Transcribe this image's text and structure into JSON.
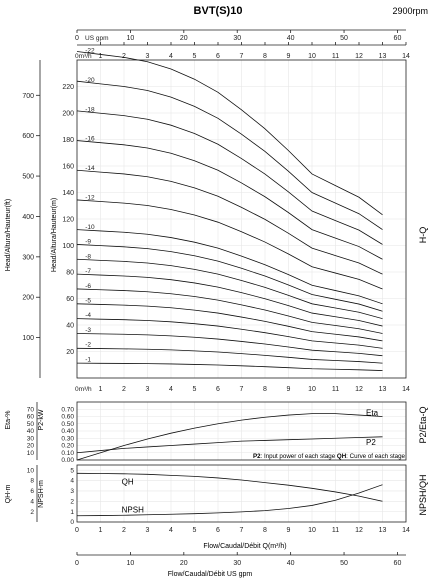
{
  "header": {
    "title": "BVT(S)10",
    "speed": "2900rpm"
  },
  "axes": {
    "top_unit": "US gpm",
    "q_top_label": "0m³/h",
    "q_mid_label": "0m³/h",
    "bottom_unit_label": "Flow/Caudal/Débit  US gpm",
    "flow_label": "Flow/Caudal/Débit Q(m³/h)",
    "head_ft_label": "Head/Altura/Hauteur(ft)",
    "head_m_label": "Head/Altura/Hauteur(m)",
    "eta_label": "Eta-%",
    "p2_label": "P2-kW",
    "qh_label": "QH-m",
    "npsh_axis_label": "NPSH-m",
    "right_hq": "H-Q",
    "right_p2": "P2/Eta-Q",
    "right_npsh": "NPSH/QH"
  },
  "notes": {
    "p2_key": "P2",
    "p2_text": ": Input power of each stage ",
    "qh_key": "QH",
    "qh_text": ": Curve of each stage"
  },
  "chart_data": [
    {
      "type": "line",
      "name": "hq",
      "x_label": "Q(m³/h)",
      "y_label": "Head/Altura/Hauteur(m)",
      "xlim": [
        0,
        14
      ],
      "ylim": [
        0,
        240
      ],
      "x_ticks": [
        "1",
        "2",
        "3",
        "4",
        "5",
        "6",
        "7",
        "8",
        "9",
        "10",
        "11",
        "12",
        "13",
        "14"
      ],
      "y_ticks_m": [
        "20",
        "40",
        "60",
        "80",
        "100",
        "120",
        "140",
        "160",
        "180",
        "200",
        "220"
      ],
      "y_ticks_ft": [
        "100",
        "200",
        "300",
        "400",
        "500",
        "600",
        "700"
      ],
      "us_gpm_ticks": [
        "0",
        "10",
        "20",
        "30",
        "40",
        "50",
        "60"
      ],
      "per_stage_head_x": [
        0,
        1,
        2,
        3,
        4,
        5,
        6,
        7,
        8,
        9,
        10,
        11,
        12,
        13
      ],
      "per_stage_head_y": [
        11.2,
        11.1,
        11.0,
        10.85,
        10.6,
        10.25,
        9.8,
        9.2,
        8.55,
        7.8,
        7.0,
        6.6,
        6.2,
        5.6
      ],
      "stages": [
        "1",
        "2",
        "3",
        "4",
        "5",
        "6",
        "7",
        "8",
        "9",
        "10",
        "12",
        "14",
        "16",
        "18",
        "20",
        "22"
      ],
      "stage_label_texts": [
        "-1",
        "-2",
        "-3",
        "-4",
        "-5",
        "-6",
        "-7",
        "-8",
        "-9",
        "-10",
        "-12",
        "-14",
        "-16",
        "-18",
        "-20",
        "-22"
      ]
    },
    {
      "type": "line",
      "name": "p2-eta",
      "xlim": [
        0,
        14
      ],
      "eta_ticks": [
        "10",
        "20",
        "30",
        "40",
        "50",
        "60",
        "70"
      ],
      "p2_ticks": [
        "0.00",
        "0.10",
        "0.20",
        "0.30",
        "0.40",
        "0.50",
        "0.60",
        "0.70"
      ],
      "series": [
        {
          "name": "Eta",
          "x": [
            0,
            1,
            2,
            3,
            4,
            5,
            6,
            7,
            8,
            9,
            10,
            11,
            12,
            13
          ],
          "y": [
            0,
            0.1,
            0.2,
            0.29,
            0.37,
            0.44,
            0.5,
            0.55,
            0.59,
            0.62,
            0.64,
            0.64,
            0.62,
            0.6
          ]
        },
        {
          "name": "P2",
          "x": [
            0,
            1,
            2,
            3,
            4,
            5,
            6,
            7,
            8,
            9,
            10,
            11,
            12,
            13
          ],
          "y": [
            0.1,
            0.13,
            0.16,
            0.18,
            0.2,
            0.22,
            0.24,
            0.26,
            0.27,
            0.28,
            0.29,
            0.3,
            0.31,
            0.32
          ]
        }
      ]
    },
    {
      "type": "line",
      "name": "npsh-qh",
      "xlim": [
        0,
        14
      ],
      "qh_ticks": [
        "2",
        "4",
        "6",
        "8",
        "10"
      ],
      "npsh_ticks": [
        "0",
        "1",
        "2",
        "3",
        "4",
        "5"
      ],
      "series": [
        {
          "name": "QH",
          "x": [
            0,
            1,
            2,
            3,
            4,
            5,
            6,
            7,
            8,
            9,
            10,
            11,
            12,
            13
          ],
          "y": [
            4.7,
            4.68,
            4.65,
            4.6,
            4.5,
            4.4,
            4.25,
            4.05,
            3.8,
            3.55,
            3.25,
            2.9,
            2.5,
            2.0
          ]
        },
        {
          "name": "NPSH",
          "x": [
            0,
            1,
            2,
            3,
            4,
            5,
            6,
            7,
            8,
            9,
            10,
            11,
            12,
            13
          ],
          "y": [
            0.6,
            0.62,
            0.65,
            0.7,
            0.75,
            0.8,
            0.88,
            0.98,
            1.1,
            1.3,
            1.6,
            2.1,
            2.8,
            3.6
          ]
        }
      ]
    }
  ]
}
